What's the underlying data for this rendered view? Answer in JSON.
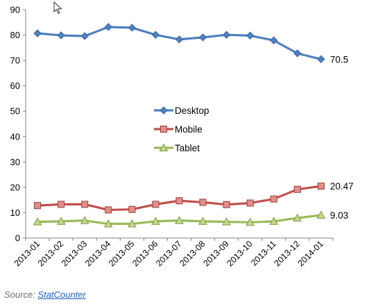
{
  "chart_data": {
    "type": "line",
    "categories": [
      "2013-01",
      "2013-02",
      "2013-03",
      "2013-04",
      "2013-05",
      "2013-06",
      "2013-07",
      "2013-08",
      "2013-09",
      "2013-10",
      "2013-11",
      "2013-12",
      "2014-01"
    ],
    "series": [
      {
        "name": "Desktop",
        "color": "#4f81bd",
        "marker": "diamond",
        "values": [
          80.7,
          79.9,
          79.6,
          83.2,
          82.9,
          80.1,
          78.3,
          79.1,
          80.1,
          79.8,
          77.9,
          72.8,
          70.5
        ]
      },
      {
        "name": "Mobile",
        "color": "#c0504d",
        "marker": "square",
        "values": [
          12.8,
          13.3,
          13.3,
          11.1,
          11.3,
          13.3,
          14.7,
          14.1,
          13.2,
          13.8,
          15.4,
          19.2,
          20.47
        ]
      },
      {
        "name": "Tablet",
        "color": "#9bbb59",
        "marker": "triangle",
        "values": [
          6.4,
          6.6,
          6.9,
          5.6,
          5.6,
          6.6,
          6.9,
          6.6,
          6.4,
          6.2,
          6.6,
          7.9,
          9.03
        ]
      }
    ],
    "end_labels": [
      "70.5",
      "20.47",
      "9.03"
    ],
    "ylim": [
      0,
      90
    ],
    "yticks": [
      0,
      10,
      20,
      30,
      40,
      50,
      60,
      70,
      80,
      90
    ],
    "grid": false,
    "legend_position": "center"
  },
  "source": {
    "prefix": "Source: ",
    "link_text": "StatCounter"
  }
}
